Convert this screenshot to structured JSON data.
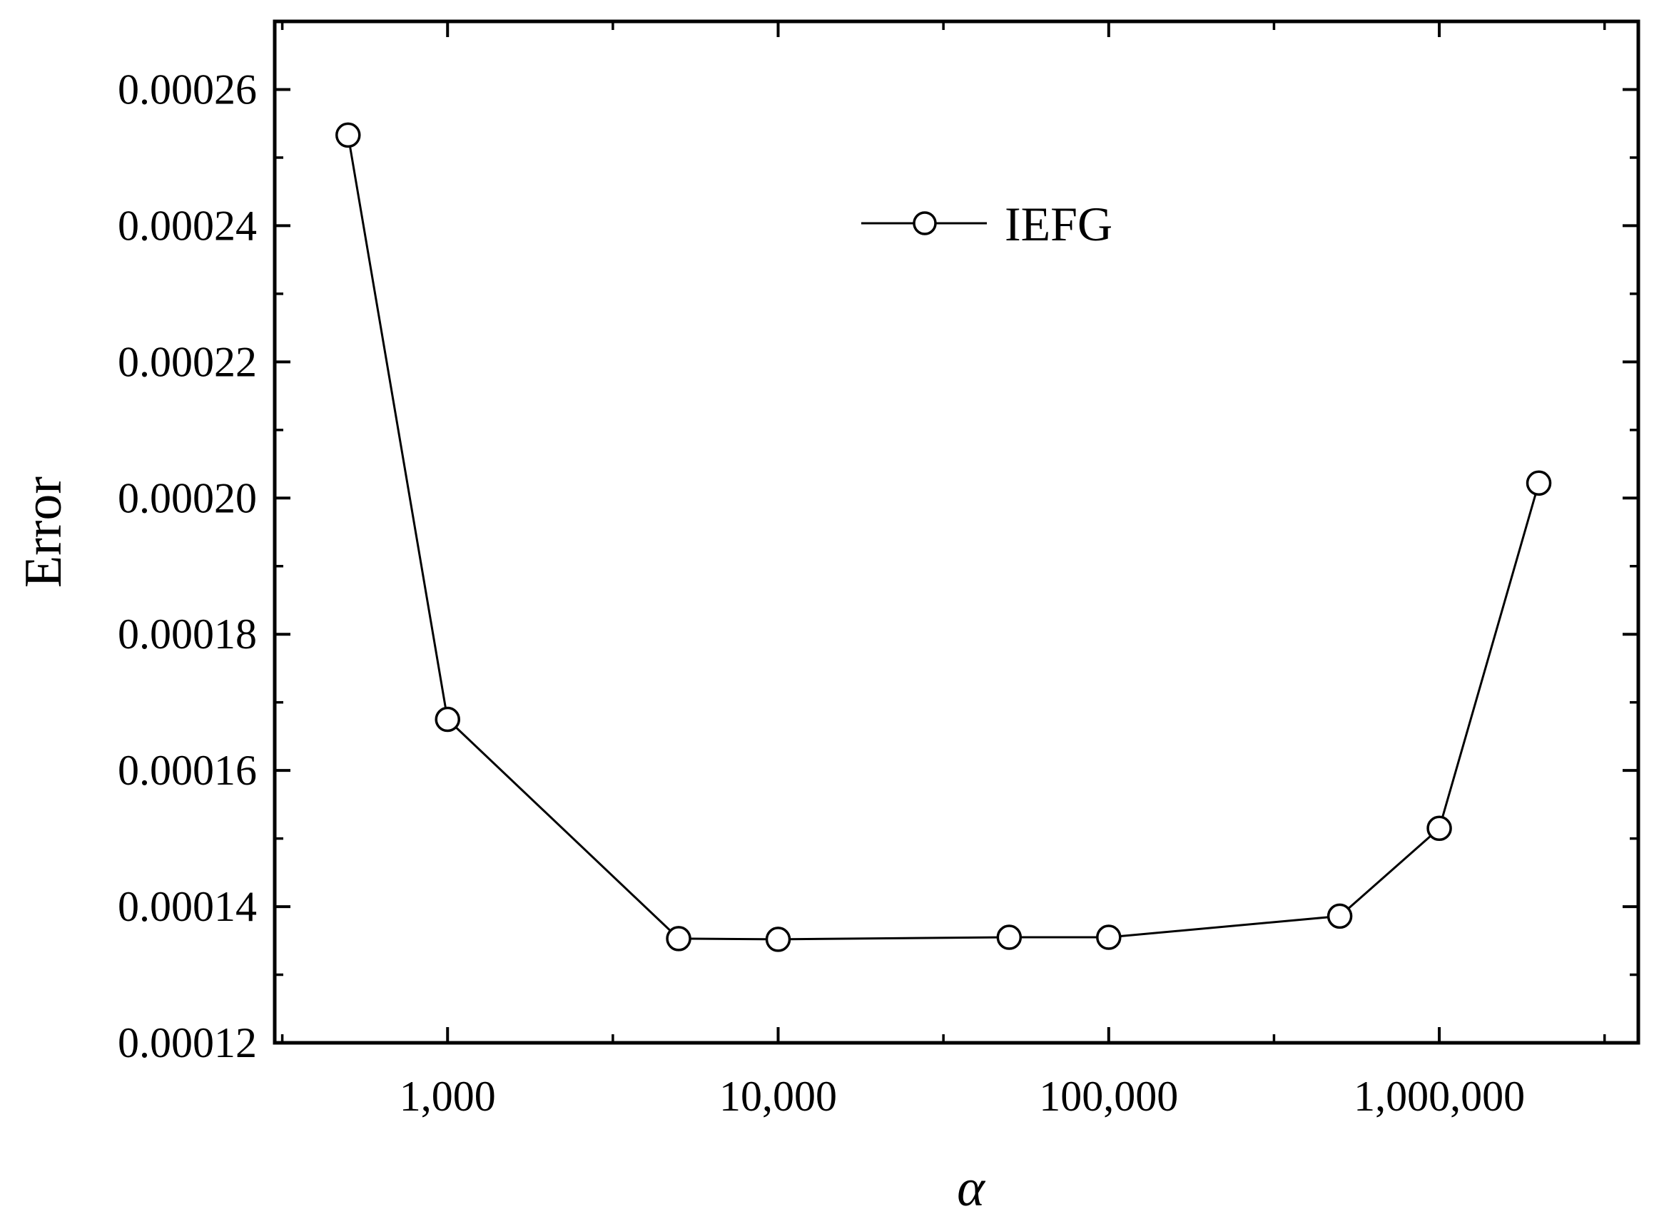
{
  "chart_data": {
    "type": "line",
    "x_scale": "log",
    "xlim": [
      300,
      4000000
    ],
    "ylim": [
      0.00012,
      0.00027
    ],
    "xlabel": "α",
    "ylabel": "Error",
    "x_ticks": [
      {
        "value": 1000,
        "label": "1,000"
      },
      {
        "value": 10000,
        "label": "10,000"
      },
      {
        "value": 100000,
        "label": "100,000"
      },
      {
        "value": 1000000,
        "label": "1,000,000"
      }
    ],
    "y_ticks": [
      {
        "value": 0.00012,
        "label": "0.00012"
      },
      {
        "value": 0.00014,
        "label": "0.00014"
      },
      {
        "value": 0.00016,
        "label": "0.00016"
      },
      {
        "value": 0.00018,
        "label": "0.00018"
      },
      {
        "value": 0.0002,
        "label": "0.00020"
      },
      {
        "value": 0.00022,
        "label": "0.00022"
      },
      {
        "value": 0.00024,
        "label": "0.00024"
      },
      {
        "value": 0.00026,
        "label": "0.00026"
      }
    ],
    "legend_position": "top-center",
    "grid": false,
    "series": [
      {
        "name": "IEFG",
        "marker": "open-circle",
        "color": "#000000",
        "points": [
          {
            "x": 500,
            "y": 0.0002533
          },
          {
            "x": 1000,
            "y": 0.0001675
          },
          {
            "x": 5000,
            "y": 0.0001353
          },
          {
            "x": 10000,
            "y": 0.0001352
          },
          {
            "x": 50000,
            "y": 0.0001355
          },
          {
            "x": 100000,
            "y": 0.0001355
          },
          {
            "x": 500000,
            "y": 0.0001386
          },
          {
            "x": 1000000,
            "y": 0.0001515
          },
          {
            "x": 2000000,
            "y": 0.0002022
          }
        ]
      }
    ]
  }
}
